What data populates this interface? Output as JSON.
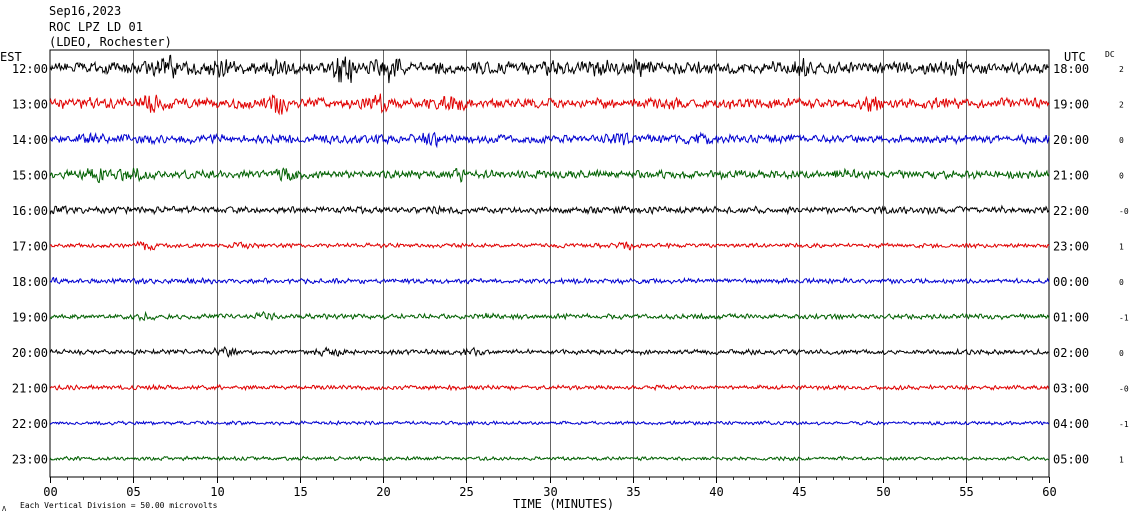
{
  "header": {
    "date": "Sep16,2023",
    "station": "ROC LPZ LD 01",
    "network": "(LDEO, Rochester)"
  },
  "labels": {
    "left_tz": "EST",
    "right_tz": "UTC",
    "dc": "DC",
    "xlabel": "TIME (MINUTES)",
    "scale_note": "Each Vertical Division =   50.00 microvolts",
    "scale_glyph": "Λ"
  },
  "colors": {
    "cycle": [
      "#000000",
      "#e00000",
      "#0000d0",
      "#006000"
    ]
  },
  "chart_data": {
    "type": "line",
    "title": "ROC LPZ LD 01",
    "xlabel": "TIME (MINUTES)",
    "x_ticks": [
      "00",
      "05",
      "10",
      "15",
      "20",
      "25",
      "30",
      "35",
      "40",
      "45",
      "50",
      "55",
      "60"
    ],
    "xlim": [
      0,
      60
    ],
    "grid": true,
    "rows": [
      {
        "est": "12:00",
        "utc": "18:00",
        "dc": "2",
        "amp": 1.0,
        "events": [
          [
            7,
            1.2
          ],
          [
            10,
            0.9
          ],
          [
            13.5,
            0.9
          ],
          [
            17.7,
            1.8
          ],
          [
            20.3,
            1.6
          ],
          [
            30.3,
            1.0
          ],
          [
            33,
            0.8
          ],
          [
            35.5,
            0.7
          ],
          [
            45,
            0.7
          ],
          [
            54.5,
            0.7
          ]
        ]
      },
      {
        "est": "13:00",
        "utc": "19:00",
        "dc": "2",
        "amp": 0.85,
        "events": [
          [
            2.5,
            0.8
          ],
          [
            6,
            0.7
          ],
          [
            13.6,
            1.3
          ],
          [
            19.8,
            1.0
          ],
          [
            24.3,
            0.9
          ],
          [
            37.5,
            0.7
          ],
          [
            49.5,
            0.6
          ]
        ]
      },
      {
        "est": "14:00",
        "utc": "20:00",
        "dc": "0",
        "amp": 0.7,
        "events": [
          [
            2.5,
            0.6
          ],
          [
            22.9,
            0.9
          ],
          [
            34.5,
            0.6
          ],
          [
            39,
            0.5
          ]
        ]
      },
      {
        "est": "15:00",
        "utc": "21:00",
        "dc": "0",
        "amp": 0.65,
        "events": [
          [
            2.9,
            1.2
          ],
          [
            5,
            0.8
          ],
          [
            14.3,
            0.6
          ],
          [
            24.6,
            0.5
          ],
          [
            47.5,
            0.6
          ]
        ]
      },
      {
        "est": "16:00",
        "utc": "22:00",
        "dc": "-0",
        "amp": 0.55,
        "events": [
          [
            0.5,
            0.5
          ],
          [
            23.5,
            0.4
          ]
        ]
      },
      {
        "est": "17:00",
        "utc": "23:00",
        "dc": "1",
        "amp": 0.35,
        "events": [
          [
            5.8,
            0.5
          ],
          [
            11.5,
            0.4
          ],
          [
            34.5,
            0.4
          ]
        ]
      },
      {
        "est": "18:00",
        "utc": "00:00",
        "dc": "0",
        "amp": 0.4,
        "events": [
          [
            0.5,
            0.3
          ],
          [
            8.5,
            0.3
          ]
        ]
      },
      {
        "est": "19:00",
        "utc": "01:00",
        "dc": "-1",
        "amp": 0.4,
        "events": [
          [
            5.5,
            0.4
          ],
          [
            13,
            0.4
          ],
          [
            26,
            0.3
          ]
        ]
      },
      {
        "est": "20:00",
        "utc": "02:00",
        "dc": "0",
        "amp": 0.4,
        "events": [
          [
            10.5,
            0.5
          ],
          [
            16.8,
            0.5
          ],
          [
            25.3,
            0.4
          ]
        ]
      },
      {
        "est": "21:00",
        "utc": "03:00",
        "dc": "-0",
        "amp": 0.35,
        "events": []
      },
      {
        "est": "22:00",
        "utc": "04:00",
        "dc": "-1",
        "amp": 0.3,
        "events": []
      },
      {
        "est": "23:00",
        "utc": "05:00",
        "dc": "1",
        "amp": 0.3,
        "events": []
      }
    ]
  }
}
